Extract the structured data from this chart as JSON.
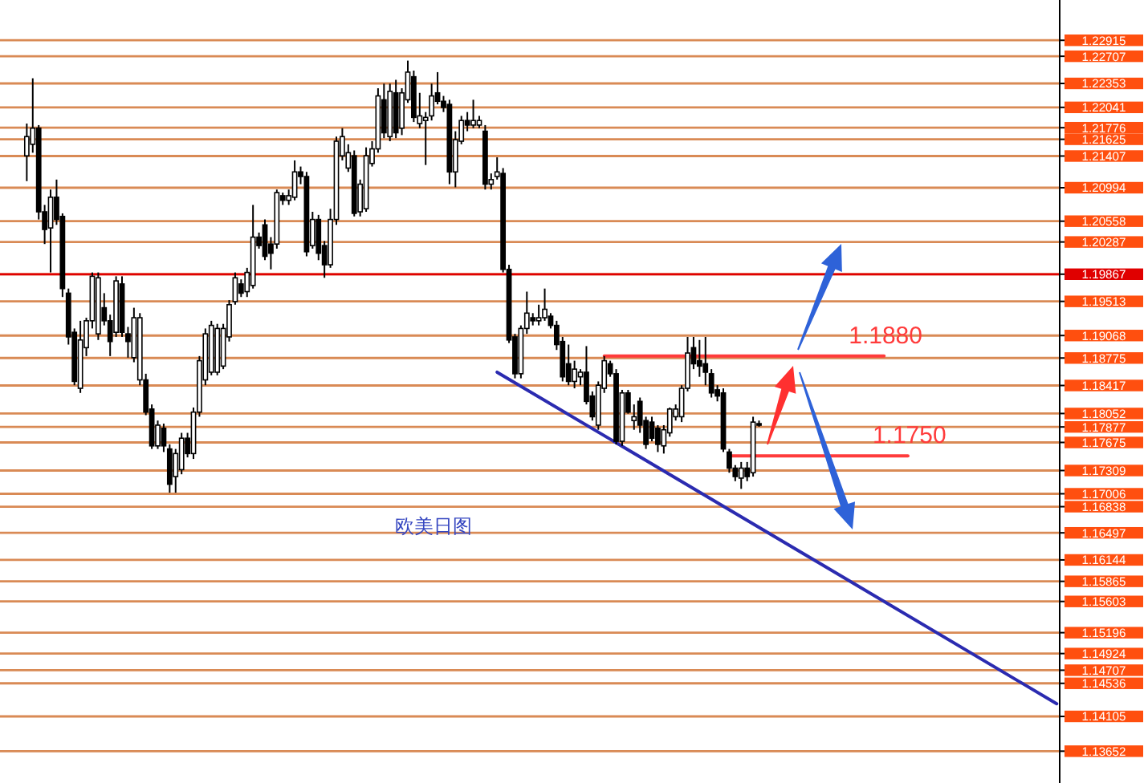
{
  "chart_data": {
    "type": "candlestick",
    "categories": [
      null,
      null,
      null,
      null,
      null,
      null,
      null,
      null,
      null,
      null,
      null,
      null,
      null,
      null,
      null,
      null,
      null,
      null,
      null,
      null,
      null,
      null,
      null,
      null,
      null,
      null,
      null,
      null,
      null,
      null,
      null,
      null,
      null,
      null,
      null,
      null,
      null,
      null,
      null,
      null,
      null,
      null,
      null,
      null,
      null,
      null,
      null,
      null,
      null,
      null,
      null,
      null,
      null,
      null,
      null,
      null,
      null,
      null,
      null,
      null,
      null,
      null,
      null,
      null,
      null,
      null,
      null,
      null,
      null,
      null,
      null,
      null,
      null,
      null,
      null,
      null,
      null,
      null,
      null,
      null,
      null,
      null,
      null,
      null,
      null,
      null,
      null,
      null,
      null,
      null,
      null,
      null,
      null,
      null,
      null,
      null,
      null,
      null,
      null,
      null,
      null,
      null,
      null,
      null,
      null,
      null,
      null,
      null,
      null,
      null,
      null,
      null,
      null,
      null,
      null,
      null,
      null,
      null,
      null,
      null,
      null,
      null,
      null,
      null,
      null,
      null,
      null,
      null,
      null,
      null,
      null,
      null,
      null,
      null,
      null,
      null,
      null,
      null,
      null,
      null,
      null,
      null,
      null,
      null,
      null,
      null,
      null,
      null,
      null,
      null,
      null,
      null,
      null,
      null,
      null,
      null,
      null,
      null,
      null,
      null,
      null,
      null,
      null,
      null,
      null,
      null,
      null,
      null,
      null,
      null,
      null,
      null,
      null,
      null,
      null,
      null,
      null,
      null
    ],
    "ohlc": [
      null,
      null,
      null,
      null,
      [
        1.2141,
        1.2183,
        1.2108,
        1.2166
      ],
      [
        1.2156,
        1.2242,
        1.2145,
        1.2177
      ],
      [
        1.2177,
        1.2181,
        1.2058,
        1.2068
      ],
      [
        1.2068,
        1.2077,
        1.2026,
        1.2045
      ],
      [
        1.2047,
        1.2097,
        1.1989,
        1.2087
      ],
      [
        1.2087,
        1.211,
        1.2051,
        1.2058
      ],
      [
        1.2062,
        1.2066,
        1.1957,
        1.1968
      ],
      [
        1.1962,
        1.1968,
        1.1895,
        1.1905
      ],
      [
        1.1911,
        1.1916,
        1.1842,
        1.1847
      ],
      [
        1.1838,
        1.1926,
        1.1832,
        1.1901
      ],
      [
        1.1891,
        1.193,
        1.188,
        1.1926
      ],
      [
        1.1926,
        1.1989,
        1.1916,
        1.1984
      ],
      [
        1.1909,
        1.1989,
        1.1901,
        1.1982
      ],
      [
        1.1943,
        1.1962,
        1.192,
        1.1926
      ],
      [
        1.1926,
        1.1934,
        1.188,
        1.1899
      ],
      [
        1.1911,
        1.1984,
        1.1905,
        1.1978
      ],
      [
        1.1974,
        1.1984,
        1.1905,
        1.1911
      ],
      [
        1.1909,
        1.1918,
        1.1878,
        1.1899
      ],
      [
        1.1878,
        1.1943,
        1.1872,
        1.193
      ],
      [
        1.1849,
        1.1936,
        1.1842,
        1.193
      ],
      [
        1.1849,
        1.1857,
        1.1803,
        1.1807
      ],
      [
        1.1811,
        1.1817,
        1.1759,
        1.1763
      ],
      [
        1.1763,
        1.1796,
        1.1759,
        1.179
      ],
      [
        1.1786,
        1.1792,
        1.1755,
        1.1763
      ],
      [
        1.1759,
        1.1765,
        1.1702,
        1.1713
      ],
      [
        1.1723,
        1.1759,
        1.1702,
        1.1753
      ],
      [
        1.1732,
        1.178,
        1.1726,
        1.1773
      ],
      [
        1.1773,
        1.178,
        1.1748,
        1.1753
      ],
      [
        1.1753,
        1.1813,
        1.1746,
        1.1807
      ],
      [
        1.1807,
        1.188,
        1.1801,
        1.1874
      ],
      [
        1.1849,
        1.1916,
        1.1842,
        1.1909
      ],
      [
        1.1859,
        1.1926,
        1.1855,
        1.192
      ],
      [
        1.1859,
        1.1922,
        1.1855,
        1.1916
      ],
      [
        1.1867,
        1.1922,
        1.1863,
        1.1916
      ],
      [
        1.1905,
        1.1953,
        1.1899,
        1.1947
      ],
      [
        1.1951,
        1.1989,
        1.1947,
        1.1982
      ],
      [
        1.1974,
        1.198,
        1.1957,
        1.1962
      ],
      [
        1.1964,
        1.1995,
        1.1957,
        1.1989
      ],
      [
        1.1972,
        1.2077,
        1.1968,
        1.2035
      ],
      [
        1.2035,
        1.2041,
        1.202,
        1.2024
      ],
      [
        1.2051,
        1.2058,
        1.2005,
        1.201
      ],
      [
        1.2026,
        1.2035,
        1.1993,
        1.2014
      ],
      [
        1.2026,
        1.2097,
        1.202,
        1.2093
      ],
      [
        1.2089,
        1.2093,
        1.2077,
        1.2083
      ],
      [
        1.2083,
        1.2097,
        1.2077,
        1.2089
      ],
      [
        1.2087,
        1.2135,
        1.2083,
        1.212
      ],
      [
        1.212,
        1.2127,
        1.2104,
        1.2114
      ],
      [
        1.2114,
        1.212,
        1.201,
        1.2016
      ],
      [
        1.2024,
        1.2068,
        1.202,
        1.2058
      ],
      [
        1.2058,
        1.2064,
        1.2005,
        1.2014
      ],
      [
        1.2024,
        1.203,
        1.1982,
        1.1999
      ],
      [
        1.1999,
        1.2072,
        1.1995,
        1.2058
      ],
      [
        1.2058,
        1.2166,
        1.2051,
        1.216
      ],
      [
        1.2141,
        1.2177,
        1.2135,
        1.2166
      ],
      [
        1.2125,
        1.2156,
        1.212,
        1.2145
      ],
      [
        1.2141,
        1.2148,
        1.2062,
        1.2066
      ],
      [
        1.2068,
        1.211,
        1.2062,
        1.2104
      ],
      [
        1.2072,
        1.2152,
        1.2068,
        1.2141
      ],
      [
        1.2131,
        1.216,
        1.2127,
        1.215
      ],
      [
        1.215,
        1.2229,
        1.2145,
        1.2219
      ],
      [
        1.2214,
        1.2235,
        1.2164,
        1.2171
      ],
      [
        1.2166,
        1.2235,
        1.216,
        1.2225
      ],
      [
        1.2223,
        1.224,
        1.2164,
        1.2171
      ],
      [
        1.2177,
        1.2229,
        1.2168,
        1.2223
      ],
      [
        1.2214,
        1.2265,
        1.221,
        1.225
      ],
      [
        1.2244,
        1.2252,
        1.2185,
        1.2191
      ],
      [
        1.2183,
        1.2223,
        1.2177,
        1.2193
      ],
      [
        1.2187,
        1.2198,
        1.2129,
        1.2191
      ],
      [
        1.2193,
        1.2235,
        1.2187,
        1.2219
      ],
      [
        1.2223,
        1.225,
        1.2208,
        1.2212
      ],
      [
        1.2212,
        1.2219,
        1.2198,
        1.2204
      ],
      [
        1.2208,
        1.2214,
        1.2104,
        1.212
      ],
      [
        1.212,
        1.2173,
        1.21,
        1.2162
      ],
      [
        1.216,
        1.2193,
        1.2156,
        1.2187
      ],
      [
        1.2187,
        1.2198,
        1.2173,
        1.2181
      ],
      [
        1.2181,
        1.2214,
        1.2177,
        1.2187
      ],
      [
        1.2181,
        1.2193,
        1.2177,
        1.2187
      ],
      [
        1.2173,
        1.2181,
        1.2097,
        1.2104
      ],
      [
        1.2104,
        1.2118,
        1.2097,
        1.211
      ],
      [
        1.2114,
        1.2139,
        1.211,
        1.212
      ],
      [
        1.2118,
        1.2125,
        1.1989,
        1.1993
      ],
      [
        1.1993,
        1.1999,
        1.1897,
        1.1901
      ],
      [
        1.1905,
        1.1909,
        1.1851,
        1.1857
      ],
      [
        1.1857,
        1.192,
        1.1851,
        1.1916
      ],
      [
        1.1916,
        1.1964,
        1.1909,
        1.1936
      ],
      [
        1.193,
        1.1936,
        1.192,
        1.1926
      ],
      [
        1.1926,
        1.1947,
        1.192,
        1.193
      ],
      [
        1.193,
        1.1968,
        1.1926,
        1.1941
      ],
      [
        1.1932,
        1.1936,
        1.1916,
        1.192
      ],
      [
        1.192,
        1.1926,
        1.1888,
        1.1895
      ],
      [
        1.1899,
        1.1905,
        1.1847,
        1.1853
      ],
      [
        1.187,
        1.1895,
        1.1842,
        1.1847
      ],
      [
        1.1847,
        1.1874,
        1.1838,
        1.1863
      ],
      [
        1.1853,
        1.1863,
        1.1842,
        1.1859
      ],
      [
        1.1859,
        1.1893,
        1.1817,
        1.1821
      ],
      [
        1.1828,
        1.1834,
        1.1796,
        1.1801
      ],
      [
        1.179,
        1.1847,
        1.1784,
        1.1842
      ],
      [
        1.1838,
        1.188,
        1.1832,
        1.1874
      ],
      [
        1.187,
        1.1874,
        1.1853,
        1.1857
      ],
      [
        1.1857,
        1.1863,
        1.1765,
        1.1769
      ],
      [
        1.1769,
        1.1836,
        1.1763,
        1.1832
      ],
      [
        1.1832,
        1.1836,
        1.1805,
        1.1807
      ],
      [
        1.1796,
        1.1817,
        1.1784,
        1.1801
      ],
      [
        1.1821,
        1.1826,
        1.178,
        1.179
      ],
      [
        1.1796,
        1.1801,
        1.1759,
        1.1765
      ],
      [
        1.1794,
        1.1801,
        1.1769,
        1.1773
      ],
      [
        1.1786,
        1.179,
        1.1755,
        1.1765
      ],
      [
        1.1763,
        1.179,
        1.1753,
        1.1784
      ],
      [
        1.178,
        1.1813,
        1.1775,
        1.1811
      ],
      [
        1.1801,
        1.1817,
        1.1796,
        1.1811
      ],
      [
        1.1801,
        1.1842,
        1.1794,
        1.1838
      ],
      [
        1.1838,
        1.1905,
        1.1834,
        1.1884
      ],
      [
        1.1891,
        1.1905,
        1.1863,
        1.187
      ],
      [
        1.1874,
        1.1901,
        1.1853,
        1.1867
      ],
      [
        1.187,
        1.1905,
        1.1842,
        1.1859
      ],
      [
        1.1857,
        1.1863,
        1.1826,
        1.1832
      ],
      [
        1.1836,
        1.1842,
        1.1821,
        1.1828
      ],
      [
        1.1832,
        1.1838,
        1.1755,
        1.1759
      ],
      [
        1.1755,
        1.1759,
        1.1728,
        1.1734
      ],
      [
        1.1734,
        1.1738,
        1.1717,
        1.1723
      ],
      [
        1.1721,
        1.1742,
        1.1707,
        1.1734
      ],
      [
        1.1734,
        1.1742,
        1.1717,
        1.1723
      ],
      [
        1.1728,
        1.1801,
        1.1723,
        1.1794
      ],
      [
        1.1792,
        1.1796,
        1.1788,
        1.179
      ],
      null,
      null,
      null,
      null,
      null,
      null,
      null,
      null,
      null,
      null,
      null,
      null,
      null,
      null,
      null,
      null,
      null,
      null,
      null,
      null,
      null,
      null,
      null,
      null,
      null,
      null,
      null,
      null,
      null,
      null,
      null,
      null,
      null,
      null,
      null,
      null,
      null,
      null,
      null,
      null,
      null,
      null,
      null,
      null,
      null,
      null,
      null,
      null,
      null,
      null
    ],
    "series": [
      {
        "type": "line",
        "values": [
          null,
          null,
          null,
          null,
          null,
          null,
          null,
          null,
          null,
          null,
          null,
          null,
          null,
          null,
          null,
          null,
          null,
          null,
          null,
          null,
          null,
          null,
          null,
          null,
          null,
          null,
          null,
          null,
          null,
          null,
          null,
          null,
          null,
          null,
          null,
          null,
          null,
          null,
          null,
          null,
          null,
          null,
          null,
          null,
          null,
          null,
          null,
          null,
          null,
          null,
          null,
          null,
          null,
          null,
          null,
          null,
          null,
          null,
          null,
          null,
          null,
          null,
          null,
          null,
          null,
          null,
          null,
          null,
          null,
          null,
          null,
          null,
          null,
          null,
          null,
          null,
          null,
          null,
          null,
          null,
          null,
          null,
          null,
          null,
          null,
          null,
          null,
          null,
          null,
          null,
          null,
          null,
          null,
          null,
          null,
          null,
          null,
          null,
          null,
          null,
          null,
          1.188,
          null,
          null,
          null,
          null,
          null,
          null,
          null,
          null,
          null,
          null,
          null,
          null,
          null,
          null,
          null,
          null,
          null,
          null,
          null,
          null,
          null,
          null,
          null,
          null,
          null,
          null,
          null,
          null,
          null,
          null,
          null,
          null,
          null,
          null,
          null,
          null,
          null,
          null,
          null,
          null,
          null,
          null,
          null,
          null,
          null,
          null,
          1.188,
          null,
          null,
          null,
          null,
          null,
          null,
          null,
          null,
          null,
          null,
          null,
          null,
          null,
          null,
          null,
          null,
          null,
          null,
          null,
          null,
          null,
          null,
          null,
          null,
          null,
          null,
          null,
          null,
          null
        ],
        "color": "#ff3b3b"
      },
      {
        "type": "line",
        "values": [
          null,
          null,
          null,
          null,
          null,
          null,
          null,
          null,
          null,
          null,
          null,
          null,
          null,
          null,
          null,
          null,
          null,
          null,
          null,
          null,
          null,
          null,
          null,
          null,
          null,
          null,
          null,
          null,
          null,
          null,
          null,
          null,
          null,
          null,
          null,
          null,
          null,
          null,
          null,
          null,
          null,
          null,
          null,
          null,
          null,
          null,
          null,
          null,
          null,
          null,
          null,
          null,
          null,
          null,
          null,
          null,
          null,
          null,
          null,
          null,
          null,
          null,
          null,
          null,
          null,
          null,
          null,
          null,
          null,
          null,
          null,
          null,
          null,
          null,
          null,
          null,
          null,
          null,
          null,
          null,
          null,
          null,
          null,
          null,
          null,
          null,
          null,
          null,
          null,
          null,
          null,
          null,
          null,
          null,
          null,
          null,
          null,
          null,
          null,
          null,
          null,
          null,
          null,
          null,
          null,
          null,
          null,
          null,
          null,
          null,
          null,
          null,
          null,
          null,
          null,
          null,
          null,
          null,
          null,
          null,
          null,
          null,
          1.175,
          null,
          null,
          null,
          null,
          null,
          null,
          null,
          null,
          null,
          null,
          null,
          null,
          null,
          null,
          null,
          null,
          null,
          null,
          null,
          null,
          null,
          null,
          null,
          null,
          null,
          null,
          null,
          null,
          null,
          1.175,
          null,
          null,
          null,
          null,
          null,
          null,
          null,
          null,
          null,
          null,
          null,
          null,
          null,
          null,
          null,
          null,
          null,
          null,
          null,
          null,
          null,
          null,
          null,
          null,
          null
        ],
        "color": "#ff3b3b"
      },
      {
        "type": "line",
        "values": [
          null,
          null,
          null,
          null,
          null,
          null,
          null,
          null,
          null,
          null,
          null,
          null,
          null,
          null,
          null,
          null,
          null,
          null,
          null,
          null,
          null,
          null,
          null,
          null,
          null,
          null,
          null,
          null,
          null,
          null,
          null,
          null,
          null,
          null,
          null,
          null,
          null,
          null,
          null,
          null,
          null,
          null,
          null,
          null,
          null,
          null,
          null,
          null,
          null,
          null,
          null,
          null,
          null,
          null,
          null,
          null,
          null,
          null,
          null,
          null,
          null,
          null,
          null,
          null,
          null,
          null,
          null,
          null,
          null,
          null,
          null,
          null,
          null,
          null,
          null,
          null,
          null,
          null,
          null,
          null,
          null,
          null,
          null,
          1.1859,
          null,
          null,
          null,
          null,
          null,
          null,
          null,
          null,
          null,
          null,
          null,
          null,
          null,
          null,
          null,
          null,
          null,
          null,
          null,
          null,
          null,
          null,
          null,
          null,
          null,
          null,
          null,
          null,
          null,
          null,
          null,
          null,
          null,
          null,
          null,
          null,
          null,
          null,
          null,
          null,
          null,
          null,
          null,
          null,
          null,
          null,
          null,
          null,
          null,
          null,
          null,
          null,
          null,
          null,
          null,
          null,
          null,
          null,
          null,
          null,
          null,
          null,
          null,
          null,
          null,
          null,
          null,
          null,
          null,
          null,
          null,
          null,
          null,
          null,
          null,
          null,
          null,
          null,
          null,
          null,
          null,
          null,
          null,
          null,
          null,
          null,
          null,
          null,
          null,
          null,
          null,
          null,
          null,
          1.1427
        ],
        "color": "#2b2bb0"
      }
    ],
    "ylim": [
      1.133,
      1.2344
    ],
    "yticks": [
      1.22915,
      1.22707,
      1.22353,
      1.22041,
      1.21776,
      1.21625,
      1.21407,
      1.20994,
      1.20558,
      1.20287,
      1.19867,
      1.19513,
      1.19068,
      1.18775,
      1.18417,
      1.18052,
      1.17877,
      1.17675,
      1.17309,
      1.17006,
      1.16838,
      1.16497,
      1.16144,
      1.15865,
      1.15603,
      1.15196,
      1.14924,
      1.14707,
      1.14536,
      1.14105,
      1.13652
    ],
    "grid": "y",
    "tick_labels": "y",
    "ref_lines": [
      {
        "axis": "y",
        "value": 1.19867,
        "color": "#e00000"
      }
    ],
    "annotations": [
      "欧美日图",
      {
        "text": "1.1880",
        "y": 1.188
      },
      {
        "text": "1.1750",
        "y": 1.175
      }
    ]
  }
}
